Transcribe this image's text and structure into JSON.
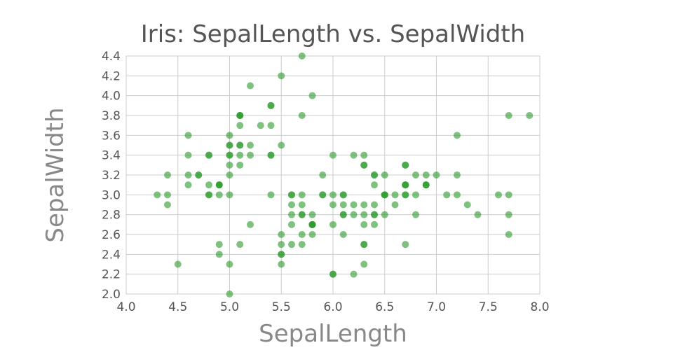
{
  "chart_data": {
    "type": "scatter",
    "title": "Iris: SepalLength vs. SepalWidth",
    "xlabel": "SepalLength",
    "ylabel": "SepalWidth",
    "xlim": [
      4.0,
      8.0
    ],
    "ylim": [
      2.0,
      4.4
    ],
    "grid": true,
    "point_color": "#2a9a2a",
    "point_opacity": 0.6,
    "x_ticks": [
      "4.0",
      "4.5",
      "5.0",
      "5.5",
      "6.0",
      "6.5",
      "7.0",
      "7.5",
      "8.0"
    ],
    "y_ticks": [
      "2.0",
      "2.2",
      "2.4",
      "2.6",
      "2.8",
      "3.0",
      "3.2",
      "3.4",
      "3.6",
      "3.8",
      "4.0",
      "4.2",
      "4.4"
    ],
    "points": [
      [
        5.1,
        3.5
      ],
      [
        4.9,
        3.0
      ],
      [
        4.7,
        3.2
      ],
      [
        4.6,
        3.1
      ],
      [
        5.0,
        3.6
      ],
      [
        5.4,
        3.9
      ],
      [
        4.6,
        3.4
      ],
      [
        5.0,
        3.4
      ],
      [
        4.4,
        2.9
      ],
      [
        4.9,
        3.1
      ],
      [
        5.4,
        3.7
      ],
      [
        4.8,
        3.4
      ],
      [
        4.8,
        3.0
      ],
      [
        4.3,
        3.0
      ],
      [
        5.8,
        4.0
      ],
      [
        5.7,
        4.4
      ],
      [
        5.4,
        3.9
      ],
      [
        5.1,
        3.5
      ],
      [
        5.7,
        3.8
      ],
      [
        5.1,
        3.8
      ],
      [
        5.4,
        3.4
      ],
      [
        5.1,
        3.7
      ],
      [
        4.6,
        3.6
      ],
      [
        5.1,
        3.3
      ],
      [
        4.8,
        3.4
      ],
      [
        5.0,
        3.0
      ],
      [
        5.0,
        3.4
      ],
      [
        5.2,
        3.5
      ],
      [
        5.2,
        3.4
      ],
      [
        4.7,
        3.2
      ],
      [
        4.8,
        3.1
      ],
      [
        5.4,
        3.4
      ],
      [
        5.2,
        4.1
      ],
      [
        5.5,
        4.2
      ],
      [
        4.9,
        3.1
      ],
      [
        5.0,
        3.2
      ],
      [
        5.5,
        3.5
      ],
      [
        4.9,
        3.1
      ],
      [
        4.4,
        3.0
      ],
      [
        5.1,
        3.4
      ],
      [
        5.0,
        3.5
      ],
      [
        4.5,
        2.3
      ],
      [
        4.4,
        3.2
      ],
      [
        5.0,
        3.5
      ],
      [
        5.1,
        3.8
      ],
      [
        4.8,
        3.0
      ],
      [
        5.1,
        3.8
      ],
      [
        4.6,
        3.2
      ],
      [
        5.3,
        3.7
      ],
      [
        5.0,
        3.3
      ],
      [
        7.0,
        3.2
      ],
      [
        6.4,
        3.2
      ],
      [
        6.9,
        3.1
      ],
      [
        5.5,
        2.3
      ],
      [
        6.5,
        2.8
      ],
      [
        5.7,
        2.8
      ],
      [
        6.3,
        3.3
      ],
      [
        4.9,
        2.4
      ],
      [
        6.6,
        2.9
      ],
      [
        5.2,
        2.7
      ],
      [
        5.0,
        2.0
      ],
      [
        5.9,
        3.0
      ],
      [
        6.0,
        2.2
      ],
      [
        6.1,
        2.9
      ],
      [
        5.6,
        2.9
      ],
      [
        6.7,
        3.1
      ],
      [
        5.6,
        3.0
      ],
      [
        5.8,
        2.7
      ],
      [
        6.2,
        2.2
      ],
      [
        5.6,
        2.5
      ],
      [
        5.9,
        3.2
      ],
      [
        6.1,
        2.8
      ],
      [
        6.3,
        2.5
      ],
      [
        6.1,
        2.8
      ],
      [
        6.4,
        2.9
      ],
      [
        6.6,
        3.0
      ],
      [
        6.8,
        2.8
      ],
      [
        6.7,
        3.0
      ],
      [
        6.0,
        2.9
      ],
      [
        5.7,
        2.6
      ],
      [
        5.5,
        2.4
      ],
      [
        5.5,
        2.4
      ],
      [
        5.8,
        2.7
      ],
      [
        6.0,
        2.7
      ],
      [
        5.4,
        3.0
      ],
      [
        6.0,
        3.4
      ],
      [
        6.7,
        3.1
      ],
      [
        6.3,
        2.3
      ],
      [
        5.6,
        3.0
      ],
      [
        5.5,
        2.5
      ],
      [
        5.5,
        2.6
      ],
      [
        6.1,
        3.0
      ],
      [
        5.8,
        2.6
      ],
      [
        5.0,
        2.3
      ],
      [
        5.6,
        2.7
      ],
      [
        5.7,
        3.0
      ],
      [
        5.7,
        2.9
      ],
      [
        6.2,
        2.9
      ],
      [
        5.1,
        2.5
      ],
      [
        5.7,
        2.8
      ],
      [
        6.3,
        3.3
      ],
      [
        5.8,
        2.7
      ],
      [
        7.1,
        3.0
      ],
      [
        6.3,
        2.9
      ],
      [
        6.5,
        3.0
      ],
      [
        7.6,
        3.0
      ],
      [
        4.9,
        2.5
      ],
      [
        7.3,
        2.9
      ],
      [
        6.7,
        2.5
      ],
      [
        7.2,
        3.6
      ],
      [
        6.5,
        3.2
      ],
      [
        6.4,
        2.7
      ],
      [
        6.8,
        3.0
      ],
      [
        5.7,
        2.5
      ],
      [
        5.8,
        2.8
      ],
      [
        6.4,
        3.2
      ],
      [
        6.5,
        3.0
      ],
      [
        7.7,
        3.8
      ],
      [
        7.7,
        2.6
      ],
      [
        6.0,
        2.2
      ],
      [
        6.9,
        3.2
      ],
      [
        5.6,
        2.8
      ],
      [
        7.7,
        2.8
      ],
      [
        6.3,
        2.7
      ],
      [
        6.7,
        3.3
      ],
      [
        7.2,
        3.2
      ],
      [
        6.2,
        2.8
      ],
      [
        6.1,
        3.0
      ],
      [
        6.4,
        2.8
      ],
      [
        7.2,
        3.0
      ],
      [
        7.4,
        2.8
      ],
      [
        7.9,
        3.8
      ],
      [
        6.4,
        2.8
      ],
      [
        6.3,
        2.8
      ],
      [
        6.1,
        2.6
      ],
      [
        7.7,
        3.0
      ],
      [
        6.3,
        3.4
      ],
      [
        6.4,
        3.1
      ],
      [
        6.0,
        3.0
      ],
      [
        6.9,
        3.1
      ],
      [
        6.7,
        3.1
      ],
      [
        6.9,
        3.1
      ],
      [
        5.8,
        2.7
      ],
      [
        6.8,
        3.2
      ],
      [
        6.7,
        3.3
      ],
      [
        6.7,
        3.0
      ],
      [
        6.3,
        2.5
      ],
      [
        6.5,
        3.0
      ],
      [
        6.2,
        3.4
      ],
      [
        5.9,
        3.0
      ]
    ]
  }
}
